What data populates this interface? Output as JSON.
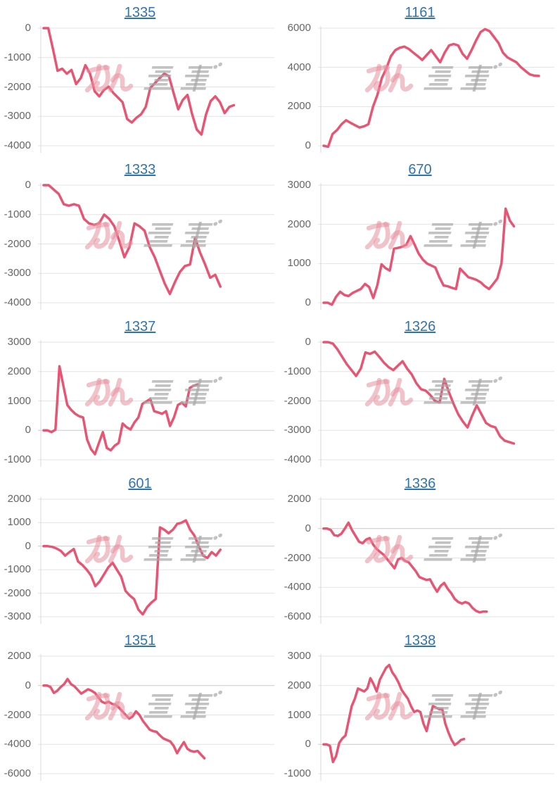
{
  "style": {
    "line_color": "#e85573",
    "title_color": "#2e74b5",
    "tick_color": "#666666",
    "grid_color": "#e3e3e3",
    "zero_grid_color": "#c9c9c9",
    "axis_color": "#d9d9d9",
    "watermark_pink": "#e8909f",
    "watermark_gray": "#a8a8a8",
    "background": "#ffffff"
  },
  "watermark": {
    "text": "みんレポ"
  },
  "chart_data": [
    {
      "type": "line",
      "title": "1335",
      "legend": false,
      "grid": true,
      "y_ticks": [
        "0",
        "-1000",
        "-2000",
        "-3000",
        "-4000"
      ],
      "ylim": [
        -4000,
        0
      ],
      "width_fraction": 0.84,
      "values": [
        0,
        0,
        -700,
        -1450,
        -1380,
        -1550,
        -1420,
        -1900,
        -1700,
        -1260,
        -1550,
        -2150,
        -2320,
        -2100,
        -1990,
        -2200,
        -2360,
        -2520,
        -3090,
        -3210,
        -3050,
        -2930,
        -2680,
        -2030,
        -1870,
        -1700,
        -1550,
        -1630,
        -2200,
        -2760,
        -2440,
        -2270,
        -2930,
        -3450,
        -3620,
        -2930,
        -2480,
        -2320,
        -2520,
        -2890,
        -2680,
        -2620
      ]
    },
    {
      "type": "line",
      "title": "1161",
      "legend": false,
      "grid": true,
      "y_ticks": [
        "6000",
        "4000",
        "2000",
        "0"
      ],
      "ylim": [
        0,
        6000
      ],
      "width_fraction": 0.95,
      "values": [
        0,
        -50,
        600,
        800,
        1100,
        1300,
        1170,
        1050,
        930,
        990,
        1100,
        1980,
        2600,
        3460,
        3950,
        4570,
        4880,
        5000,
        5060,
        4940,
        4750,
        4570,
        4380,
        4630,
        4880,
        4570,
        4260,
        4750,
        5120,
        5190,
        5120,
        4690,
        4440,
        4880,
        5370,
        5800,
        5950,
        5850,
        5550,
        5250,
        4750,
        4510,
        4380,
        4260,
        4010,
        3820,
        3640,
        3580,
        3560
      ]
    },
    {
      "type": "line",
      "title": "1333",
      "legend": false,
      "grid": true,
      "y_ticks": [
        "0",
        "-1000",
        "-2000",
        "-3000",
        "-4000"
      ],
      "ylim": [
        -4000,
        0
      ],
      "width_fraction": 0.78,
      "values": [
        0,
        0,
        -150,
        -300,
        -650,
        -700,
        -650,
        -700,
        -1150,
        -1300,
        -1350,
        -1300,
        -1000,
        -1150,
        -1400,
        -1900,
        -2450,
        -2100,
        -1300,
        -1400,
        -1550,
        -2100,
        -2450,
        -2900,
        -3350,
        -3700,
        -3300,
        -2950,
        -2750,
        -2700,
        -1800,
        -2300,
        -2700,
        -3150,
        -3050,
        -3450
      ]
    },
    {
      "type": "line",
      "title": "670",
      "legend": false,
      "grid": true,
      "y_ticks": [
        "3000",
        "2000",
        "1000",
        "0"
      ],
      "ylim": [
        0,
        3000
      ],
      "width_fraction": 0.84,
      "values": [
        0,
        0,
        -50,
        150,
        280,
        200,
        170,
        250,
        300,
        350,
        480,
        400,
        120,
        450,
        980,
        880,
        820,
        1380,
        1400,
        1430,
        1480,
        1700,
        1480,
        1250,
        1100,
        1000,
        950,
        900,
        650,
        440,
        420,
        380,
        350,
        870,
        760,
        650,
        620,
        580,
        520,
        420,
        350,
        480,
        620,
        1000,
        2400,
        2100,
        1950
      ]
    },
    {
      "type": "line",
      "title": "1337",
      "legend": false,
      "grid": true,
      "y_ticks": [
        "3000",
        "2000",
        "1000",
        "0",
        "-1000"
      ],
      "ylim": [
        -1000,
        3000
      ],
      "width_fraction": 0.68,
      "values": [
        0,
        0,
        -60,
        20,
        2180,
        1520,
        860,
        690,
        565,
        480,
        440,
        -310,
        -640,
        -810,
        -430,
        -60,
        -600,
        -680,
        -520,
        -430,
        230,
        110,
        30,
        270,
        440,
        900,
        980,
        1070,
        650,
        610,
        565,
        650,
        150,
        440,
        860,
        940,
        815,
        1440,
        1520,
        1560
      ]
    },
    {
      "type": "line",
      "title": "1326",
      "legend": false,
      "grid": true,
      "y_ticks": [
        "0",
        "-1000",
        "-2000",
        "-3000",
        "-4000"
      ],
      "ylim": [
        -4000,
        0
      ],
      "width_fraction": 0.84,
      "values": [
        0,
        0,
        -50,
        -250,
        -500,
        -750,
        -950,
        -1150,
        -900,
        -350,
        -400,
        -320,
        -500,
        -700,
        -850,
        -950,
        -800,
        -650,
        -900,
        -1100,
        -1400,
        -1600,
        -1650,
        -1800,
        -2000,
        -2050,
        -1250,
        -1700,
        -2100,
        -2450,
        -2700,
        -2900,
        -2500,
        -2150,
        -2450,
        -2750,
        -2850,
        -2900,
        -3200,
        -3350,
        -3400,
        -3450
      ]
    },
    {
      "type": "line",
      "title": "601",
      "legend": false,
      "grid": true,
      "y_ticks": [
        "2000",
        "1000",
        "0",
        "-1000",
        "-2000",
        "-3000"
      ],
      "ylim": [
        -3000,
        2000
      ],
      "width_fraction": 0.78,
      "values": [
        0,
        0,
        -30,
        -100,
        -200,
        -400,
        -250,
        -120,
        -650,
        -800,
        -1000,
        -1250,
        -1700,
        -1500,
        -1200,
        -900,
        -700,
        -1000,
        -1300,
        -1900,
        -2100,
        -2250,
        -2700,
        -2900,
        -2600,
        -2400,
        -2250,
        800,
        700,
        550,
        700,
        950,
        1000,
        1100,
        700,
        450,
        0,
        -400,
        -500,
        -250,
        -400,
        -150
      ]
    },
    {
      "type": "line",
      "title": "1336",
      "legend": false,
      "grid": true,
      "y_ticks": [
        "2000",
        "0",
        "-2000",
        "-4000",
        "-6000"
      ],
      "ylim": [
        -6000,
        2000
      ],
      "width_fraction": 0.72,
      "values": [
        0,
        0,
        -100,
        -450,
        -500,
        -350,
        0,
        400,
        -100,
        -500,
        -900,
        -1000,
        -750,
        -650,
        -1100,
        -1400,
        -1600,
        -1800,
        -2100,
        -2400,
        -2700,
        -2100,
        -2000,
        -2200,
        -2300,
        -2600,
        -2900,
        -3300,
        -3400,
        -3500,
        -3450,
        -3900,
        -4300,
        -3900,
        -3700,
        -4100,
        -4400,
        -4800,
        -5000,
        -5100,
        -5000,
        -5100,
        -5400,
        -5600,
        -5700,
        -5650,
        -5650
      ]
    },
    {
      "type": "line",
      "title": "1351",
      "legend": false,
      "grid": true,
      "y_ticks": [
        "2000",
        "0",
        "-2000",
        "-4000",
        "-6000"
      ],
      "ylim": [
        -6000,
        2000
      ],
      "width_fraction": 0.71,
      "values": [
        0,
        0,
        -100,
        -500,
        -350,
        -100,
        100,
        450,
        100,
        -50,
        -300,
        -550,
        -400,
        -250,
        -350,
        -500,
        -800,
        -1100,
        -1200,
        -1100,
        -1250,
        -1300,
        -1500,
        -1750,
        -2000,
        -2250,
        -2100,
        -1750,
        -2000,
        -2400,
        -2700,
        -3000,
        -3100,
        -3150,
        -3400,
        -3600,
        -3700,
        -3800,
        -4100,
        -4600,
        -4200,
        -3850,
        -4300,
        -4450,
        -4500,
        -4450,
        -4700,
        -4950
      ]
    },
    {
      "type": "line",
      "title": "1338",
      "legend": false,
      "grid": true,
      "y_ticks": [
        "3000",
        "2000",
        "1000",
        "0",
        "-1000"
      ],
      "ylim": [
        -1000,
        3000
      ],
      "width_fraction": 0.62,
      "values": [
        0,
        0,
        -50,
        -600,
        -400,
        50,
        200,
        300,
        800,
        1300,
        1550,
        1900,
        1850,
        1800,
        1900,
        2250,
        2050,
        1800,
        2200,
        2400,
        2600,
        2700,
        2450,
        2300,
        2100,
        1850,
        1700,
        1550,
        1300,
        1100,
        1150,
        1100,
        700,
        450,
        900,
        1300,
        1250,
        1200,
        1200,
        700,
        400,
        150,
        -20,
        50,
        150,
        180
      ]
    }
  ]
}
